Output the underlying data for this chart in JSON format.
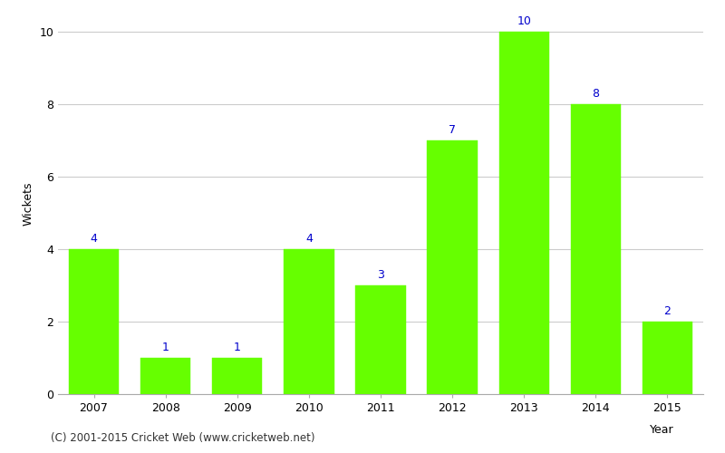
{
  "years": [
    "2007",
    "2008",
    "2009",
    "2010",
    "2011",
    "2012",
    "2013",
    "2014",
    "2015"
  ],
  "wickets": [
    4,
    1,
    1,
    4,
    3,
    7,
    10,
    8,
    2
  ],
  "bar_color": "#66ff00",
  "bar_edge_color": "#66ff00",
  "label_color": "#0000cc",
  "xlabel": "Year",
  "ylabel": "Wickets",
  "ylim": [
    0,
    10.5
  ],
  "yticks": [
    0,
    2,
    4,
    6,
    8,
    10
  ],
  "title": "",
  "footnote": "(C) 2001-2015 Cricket Web (www.cricketweb.net)",
  "background_color": "#ffffff",
  "grid_color": "#cccccc",
  "label_fontsize": 9,
  "axis_fontsize": 9,
  "footnote_fontsize": 8.5
}
